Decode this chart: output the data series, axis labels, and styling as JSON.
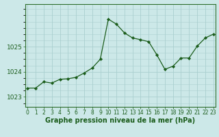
{
  "x": [
    0,
    1,
    2,
    3,
    4,
    5,
    6,
    7,
    8,
    9,
    10,
    11,
    12,
    13,
    14,
    15,
    16,
    17,
    18,
    19,
    20,
    21,
    22,
    23
  ],
  "y": [
    1023.35,
    1023.35,
    1023.6,
    1023.55,
    1023.7,
    1023.72,
    1023.78,
    1023.95,
    1024.15,
    1024.5,
    1026.1,
    1025.9,
    1025.55,
    1025.35,
    1025.28,
    1025.2,
    1024.68,
    1024.1,
    1024.22,
    1024.55,
    1024.55,
    1025.02,
    1025.35,
    1025.5
  ],
  "bg_color": "#cce8e8",
  "line_color": "#1a5c1a",
  "marker_color": "#1a5c1a",
  "grid_color": "#aacfcf",
  "spine_color": "#2d6e2d",
  "label_color": "#1a5c1a",
  "xlabel": "Graphe pression niveau de la mer (hPa)",
  "yticks": [
    1023,
    1024,
    1025
  ],
  "ylim": [
    1022.6,
    1026.7
  ],
  "xlim": [
    -0.3,
    23.3
  ],
  "xtick_fontsize": 5.5,
  "ytick_fontsize": 6.5,
  "label_fontsize": 7.0
}
